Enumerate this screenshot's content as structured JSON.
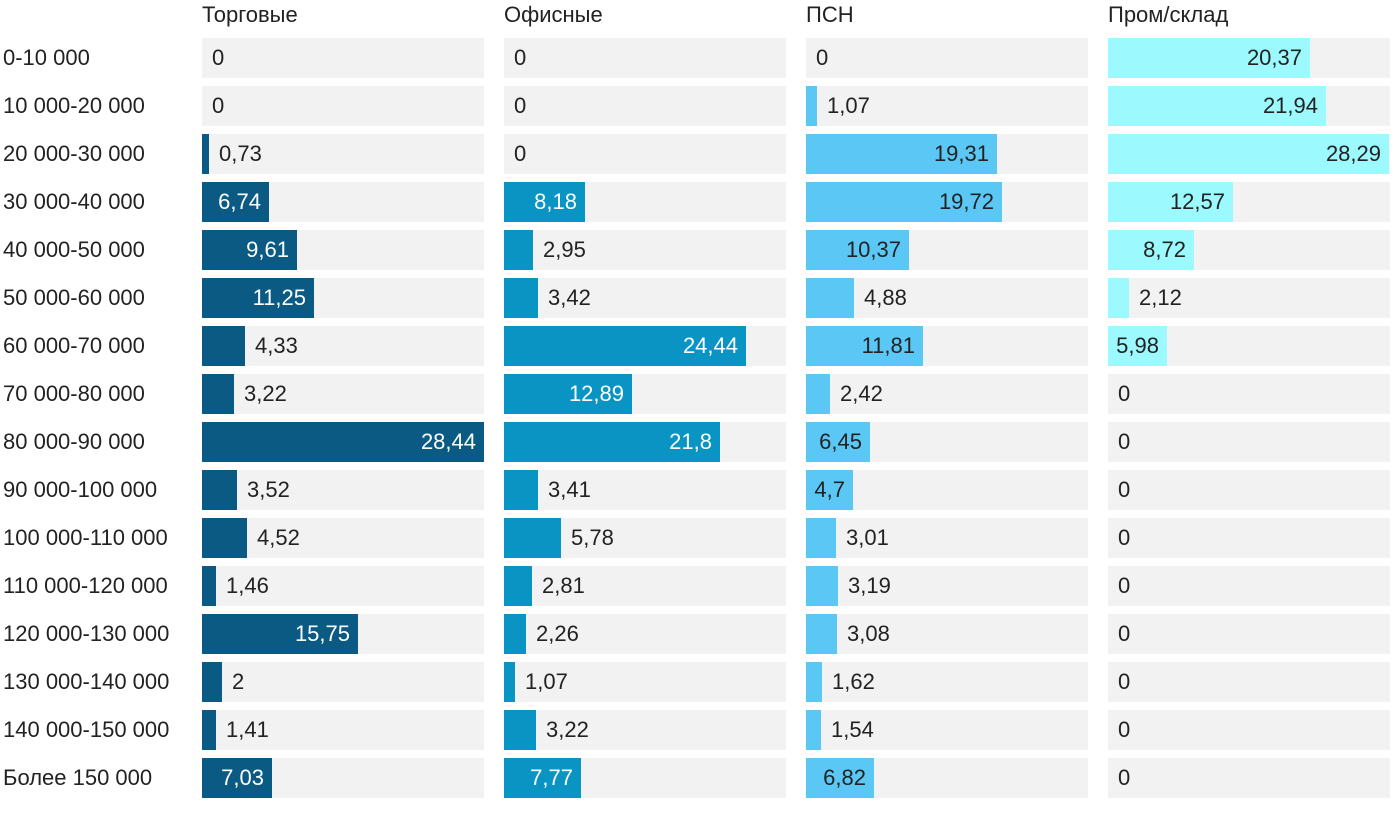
{
  "chart_data": {
    "type": "bar",
    "orientation": "horizontal",
    "layout": "small-multiples",
    "scale_max": 28.44,
    "categories": [
      "0-10 000",
      "10 000-20 000",
      "20 000-30 000",
      "30 000-40 000",
      "40 000-50 000",
      "50 000-60 000",
      "60 000-70 000",
      "70 000-80 000",
      "80 000-90 000",
      "90 000-100 000",
      "100 000-110 000",
      "110 000-120 000",
      "120 000-130 000",
      "130 000-140 000",
      "140 000-150 000",
      "Более 150 000"
    ],
    "series": [
      {
        "name": "Торговые",
        "color": "#0b5a84",
        "label_color_inside": "#ffffff",
        "values": [
          0,
          0,
          0.73,
          6.74,
          9.61,
          11.25,
          4.33,
          3.22,
          28.44,
          3.52,
          4.52,
          1.46,
          15.75,
          2,
          1.41,
          7.03
        ],
        "labels": [
          "0",
          "0",
          "0,73",
          "6,74",
          "9,61",
          "11,25",
          "4,33",
          "3,22",
          "28,44",
          "3,52",
          "4,52",
          "1,46",
          "15,75",
          "2",
          "1,41",
          "7,03"
        ]
      },
      {
        "name": "Офисные",
        "color": "#0994c3",
        "label_color_inside": "#ffffff",
        "values": [
          0,
          0,
          0,
          8.18,
          2.95,
          3.42,
          24.44,
          12.89,
          21.8,
          3.41,
          5.78,
          2.81,
          2.26,
          1.07,
          3.22,
          7.77
        ],
        "labels": [
          "0",
          "0",
          "0",
          "8,18",
          "2,95",
          "3,42",
          "24,44",
          "12,89",
          "21,8",
          "3,41",
          "5,78",
          "2,81",
          "2,26",
          "1,07",
          "3,22",
          "7,77"
        ]
      },
      {
        "name": "ПСН",
        "color": "#5bc7f5",
        "label_color_inside": "#222222",
        "values": [
          0,
          1.07,
          19.31,
          19.72,
          10.37,
          4.88,
          11.81,
          2.42,
          6.45,
          4.7,
          3.01,
          3.19,
          3.08,
          1.62,
          1.54,
          6.82
        ],
        "labels": [
          "0",
          "1,07",
          "19,31",
          "19,72",
          "10,37",
          "4,88",
          "11,81",
          "2,42",
          "6,45",
          "4,7",
          "3,01",
          "3,19",
          "3,08",
          "1,62",
          "1,54",
          "6,82"
        ]
      },
      {
        "name": "Пром/склад",
        "color": "#9cf9fd",
        "label_color_inside": "#222222",
        "values": [
          20.37,
          21.94,
          28.29,
          12.57,
          8.72,
          2.12,
          5.98,
          0,
          0,
          0,
          0,
          0,
          0,
          0,
          0,
          0
        ],
        "labels": [
          "20,37",
          "21,94",
          "28,29",
          "12,57",
          "8,72",
          "2,12",
          "5,98",
          "0",
          "0",
          "0",
          "0",
          "0",
          "0",
          "0",
          "0",
          "0"
        ]
      }
    ],
    "background_track_color": "#f2f2f2"
  }
}
